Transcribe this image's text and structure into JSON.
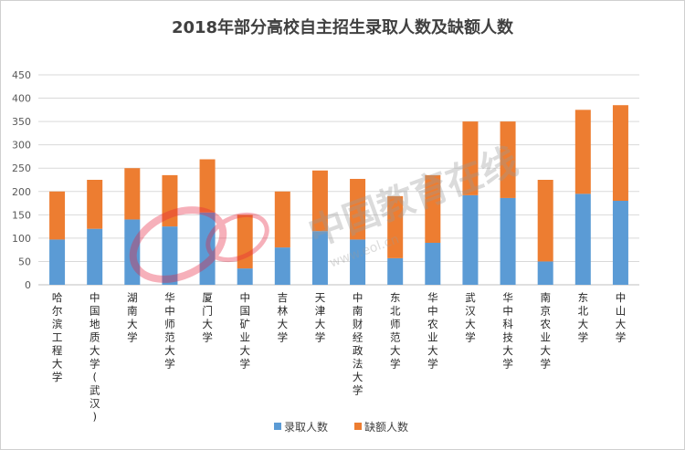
{
  "chart_data": {
    "type": "bar",
    "stacked": true,
    "title": "2018年部分高校自主招生录取人数及缺额人数",
    "xlabel": "",
    "ylabel": "",
    "ylim": [
      0,
      450
    ],
    "yticks": [
      0,
      50,
      100,
      150,
      200,
      250,
      300,
      350,
      400,
      450
    ],
    "grid": true,
    "legend_position": "bottom",
    "categories": [
      "哈尔滨工程大学",
      "中国地质大学(武汉)",
      "湖南大学",
      "华中师范大学",
      "厦门大学",
      "中国矿业大学",
      "吉林大学",
      "天津大学",
      "中南财经政法大学",
      "东北师范大学",
      "华中农业大学",
      "武汉大学",
      "华中科技大学",
      "南京农业大学",
      "东北大学",
      "中山大学"
    ],
    "series": [
      {
        "name": "录取人数",
        "color": "#5b9bd5",
        "values": [
          97,
          120,
          140,
          125,
          155,
          35,
          80,
          115,
          97,
          57,
          90,
          192,
          186,
          50,
          195,
          180
        ]
      },
      {
        "name": "缺额人数",
        "color": "#ed7d31",
        "values": [
          103,
          105,
          110,
          110,
          114,
          115,
          120,
          130,
          130,
          133,
          145,
          158,
          164,
          175,
          180,
          205
        ]
      }
    ]
  },
  "watermark": {
    "text": "中国教育在线",
    "subtext": "www.eol.cn"
  }
}
